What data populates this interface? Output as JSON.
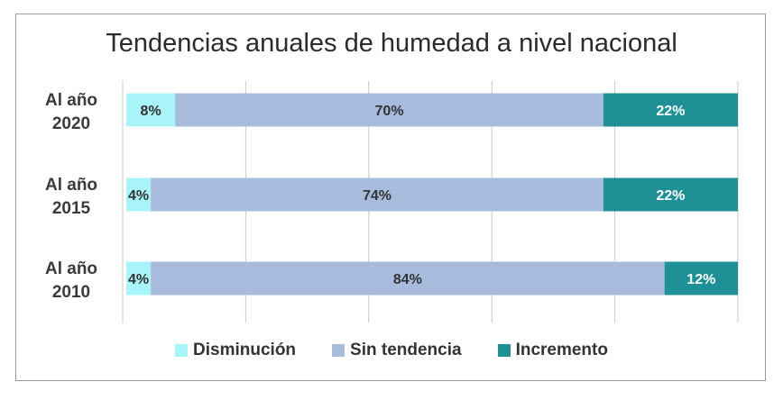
{
  "chart_data": {
    "type": "bar",
    "orientation": "horizontal",
    "stacked": true,
    "title": "Tendencias anuales de humedad a nivel nacional",
    "categories": [
      [
        "Al año",
        "2020"
      ],
      [
        "Al año",
        "2015"
      ],
      [
        "Al año",
        "2010"
      ]
    ],
    "series": [
      {
        "name": "Disminución",
        "color": "#a8f4f8",
        "values": [
          8,
          4,
          4
        ],
        "labels": [
          "8%",
          "4%",
          "4%"
        ],
        "label_color": "#333333"
      },
      {
        "name": "Sin tendencia",
        "color": "#a7bcdc",
        "values": [
          70,
          74,
          84
        ],
        "labels": [
          "70%",
          "74%",
          "84%"
        ],
        "label_color": "#333333"
      },
      {
        "name": "Incremento",
        "color": "#1f9096",
        "values": [
          22,
          22,
          12
        ],
        "labels": [
          "22%",
          "22%",
          "12%"
        ],
        "label_color": "#ffffff"
      }
    ],
    "xlim": [
      0,
      100
    ],
    "grid": true,
    "legend_position": "bottom"
  }
}
